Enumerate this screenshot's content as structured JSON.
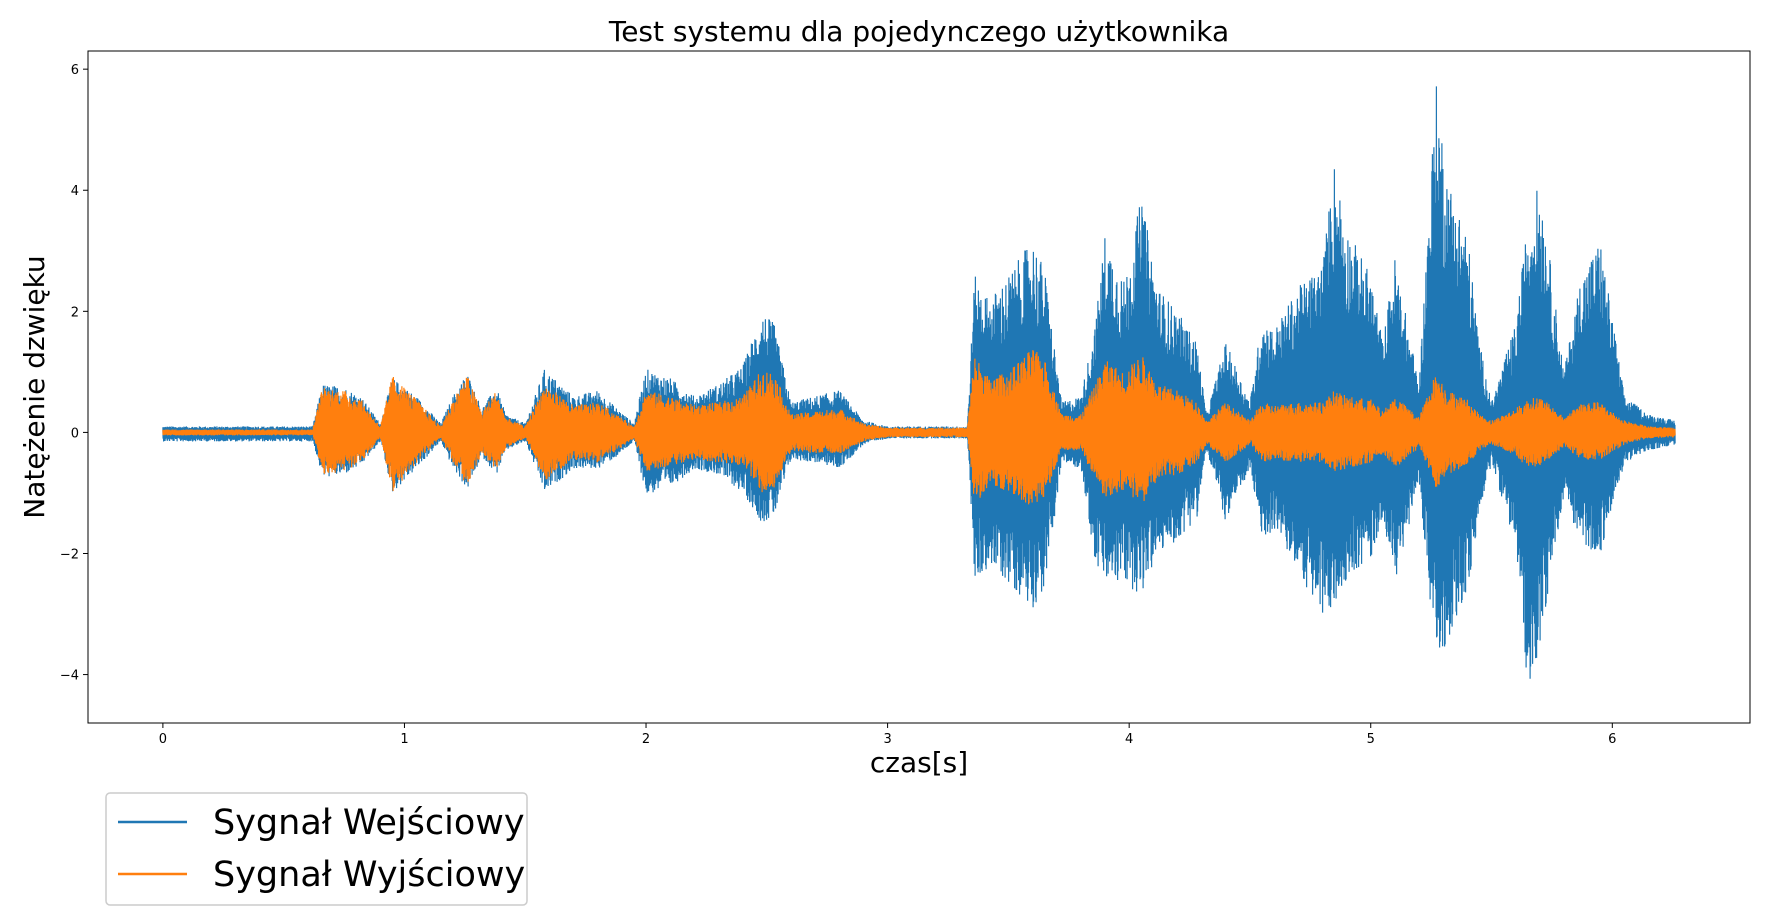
{
  "chart_data": {
    "type": "line",
    "title": "Test systemu dla pojedynczego użytkownika",
    "xlabel": "czas[s]",
    "ylabel": "Natężenie dzwięku",
    "xlim": [
      -0.31,
      6.57
    ],
    "ylim": [
      -4.8,
      6.3
    ],
    "x_ticks": [
      0,
      1,
      2,
      3,
      4,
      5,
      6
    ],
    "x_tick_labels": [
      "0",
      "1",
      "2",
      "3",
      "4",
      "5",
      "6"
    ],
    "y_ticks": [
      -4,
      -2,
      0,
      2,
      4,
      6
    ],
    "y_tick_labels": [
      "−4",
      "−2",
      "0",
      "2",
      "4",
      "6"
    ],
    "grid": false,
    "legend_position": "below-left",
    "duration_s": 6.26,
    "series": [
      {
        "name": "Sygnał Wejściowy",
        "color": "#1f77b4",
        "envelope": {
          "t": [
            0.0,
            0.3,
            0.62,
            0.66,
            0.75,
            0.82,
            0.9,
            0.95,
            1.05,
            1.15,
            1.2,
            1.26,
            1.32,
            1.38,
            1.42,
            1.5,
            1.58,
            1.7,
            1.8,
            1.88,
            1.95,
            2.0,
            2.1,
            2.2,
            2.3,
            2.4,
            2.48,
            2.53,
            2.6,
            2.7,
            2.8,
            2.9,
            3.0,
            3.2,
            3.33,
            3.36,
            3.42,
            3.5,
            3.6,
            3.65,
            3.72,
            3.8,
            3.86,
            3.9,
            3.98,
            4.05,
            4.12,
            4.2,
            4.28,
            4.32,
            4.4,
            4.5,
            4.55,
            4.6,
            4.7,
            4.8,
            4.85,
            4.9,
            5.0,
            5.05,
            5.1,
            5.2,
            5.27,
            5.32,
            5.4,
            5.45,
            5.5,
            5.6,
            5.65,
            5.7,
            5.8,
            5.87,
            5.95,
            6.05,
            6.15,
            6.26
          ],
          "max": [
            0.1,
            0.1,
            0.1,
            0.8,
            0.75,
            0.6,
            0.15,
            0.9,
            0.6,
            0.15,
            0.6,
            1.0,
            0.4,
            0.75,
            0.3,
            0.15,
            1.05,
            0.6,
            0.7,
            0.4,
            0.15,
            1.05,
            0.9,
            0.6,
            0.8,
            1.1,
            2.0,
            1.8,
            0.5,
            0.6,
            0.7,
            0.2,
            0.1,
            0.1,
            0.1,
            2.6,
            2.2,
            2.6,
            3.2,
            2.7,
            0.5,
            0.6,
            1.8,
            3.3,
            2.5,
            3.9,
            2.4,
            2.0,
            1.5,
            0.3,
            1.5,
            0.5,
            1.9,
            1.7,
            2.4,
            2.8,
            4.5,
            3.4,
            2.6,
            1.5,
            2.9,
            0.8,
            5.8,
            4.2,
            3.3,
            1.5,
            0.5,
            1.8,
            3.5,
            4.2,
            1.0,
            2.6,
            3.2,
            0.6,
            0.3,
            0.2
          ],
          "min": [
            -0.15,
            -0.15,
            -0.15,
            -0.75,
            -0.7,
            -0.55,
            -0.15,
            -1.0,
            -0.6,
            -0.15,
            -0.6,
            -0.95,
            -0.4,
            -0.7,
            -0.3,
            -0.15,
            -1.0,
            -0.6,
            -0.6,
            -0.4,
            -0.15,
            -1.05,
            -0.9,
            -0.6,
            -0.7,
            -1.0,
            -1.5,
            -1.4,
            -0.45,
            -0.5,
            -0.6,
            -0.2,
            -0.1,
            -0.1,
            -0.1,
            -2.5,
            -2.2,
            -2.5,
            -2.9,
            -2.6,
            -0.5,
            -0.6,
            -2.2,
            -2.5,
            -2.5,
            -2.7,
            -2.0,
            -1.8,
            -1.4,
            -0.3,
            -1.5,
            -0.6,
            -1.8,
            -1.6,
            -2.3,
            -3.1,
            -2.9,
            -2.4,
            -2.1,
            -1.4,
            -2.5,
            -0.8,
            -4.0,
            -3.4,
            -2.7,
            -1.3,
            -0.5,
            -1.9,
            -4.3,
            -3.5,
            -1.0,
            -1.9,
            -2.0,
            -0.5,
            -0.3,
            -0.2
          ]
        }
      },
      {
        "name": "Sygnał Wyjściowy",
        "color": "#ff7f0e",
        "envelope": {
          "t": [
            0.0,
            0.3,
            0.62,
            0.66,
            0.75,
            0.82,
            0.9,
            0.95,
            1.05,
            1.15,
            1.2,
            1.26,
            1.32,
            1.38,
            1.42,
            1.5,
            1.58,
            1.7,
            1.8,
            1.88,
            1.95,
            2.0,
            2.1,
            2.2,
            2.3,
            2.4,
            2.48,
            2.53,
            2.6,
            2.7,
            2.8,
            2.9,
            3.0,
            3.2,
            3.33,
            3.36,
            3.42,
            3.5,
            3.6,
            3.65,
            3.72,
            3.8,
            3.86,
            3.9,
            3.98,
            4.05,
            4.12,
            4.2,
            4.28,
            4.32,
            4.4,
            4.5,
            4.55,
            4.6,
            4.7,
            4.8,
            4.85,
            4.9,
            5.0,
            5.05,
            5.1,
            5.2,
            5.27,
            5.32,
            5.4,
            5.45,
            5.5,
            5.6,
            5.65,
            5.7,
            5.8,
            5.87,
            5.95,
            6.05,
            6.15,
            6.26
          ],
          "max": [
            0.05,
            0.05,
            0.05,
            0.75,
            0.7,
            0.55,
            0.1,
            0.95,
            0.55,
            0.1,
            0.55,
            0.95,
            0.35,
            0.7,
            0.25,
            0.1,
            0.8,
            0.45,
            0.5,
            0.3,
            0.1,
            0.7,
            0.6,
            0.45,
            0.5,
            0.6,
            1.05,
            1.0,
            0.3,
            0.35,
            0.4,
            0.15,
            0.08,
            0.08,
            0.08,
            1.3,
            0.9,
            1.0,
            1.4,
            1.2,
            0.3,
            0.3,
            0.8,
            1.2,
            1.0,
            1.3,
            0.8,
            0.7,
            0.5,
            0.2,
            0.5,
            0.2,
            0.5,
            0.45,
            0.5,
            0.5,
            0.7,
            0.6,
            0.55,
            0.35,
            0.6,
            0.25,
            1.0,
            0.7,
            0.55,
            0.3,
            0.2,
            0.4,
            0.55,
            0.6,
            0.25,
            0.5,
            0.5,
            0.2,
            0.1,
            0.08
          ],
          "min": [
            -0.05,
            -0.05,
            -0.05,
            -0.7,
            -0.65,
            -0.5,
            -0.1,
            -1.0,
            -0.5,
            -0.1,
            -0.5,
            -0.9,
            -0.35,
            -0.65,
            -0.25,
            -0.1,
            -0.8,
            -0.45,
            -0.5,
            -0.3,
            -0.1,
            -0.65,
            -0.55,
            -0.45,
            -0.5,
            -0.55,
            -1.0,
            -0.95,
            -0.3,
            -0.35,
            -0.35,
            -0.15,
            -0.08,
            -0.08,
            -0.08,
            -1.2,
            -0.9,
            -1.0,
            -1.3,
            -1.1,
            -0.3,
            -0.3,
            -0.8,
            -1.1,
            -0.95,
            -1.2,
            -0.8,
            -0.7,
            -0.5,
            -0.2,
            -0.5,
            -0.2,
            -0.5,
            -0.45,
            -0.5,
            -0.5,
            -0.65,
            -0.6,
            -0.5,
            -0.35,
            -0.6,
            -0.25,
            -0.95,
            -0.7,
            -0.55,
            -0.3,
            -0.2,
            -0.4,
            -0.6,
            -0.55,
            -0.25,
            -0.45,
            -0.45,
            -0.2,
            -0.1,
            -0.08
          ]
        }
      }
    ]
  }
}
